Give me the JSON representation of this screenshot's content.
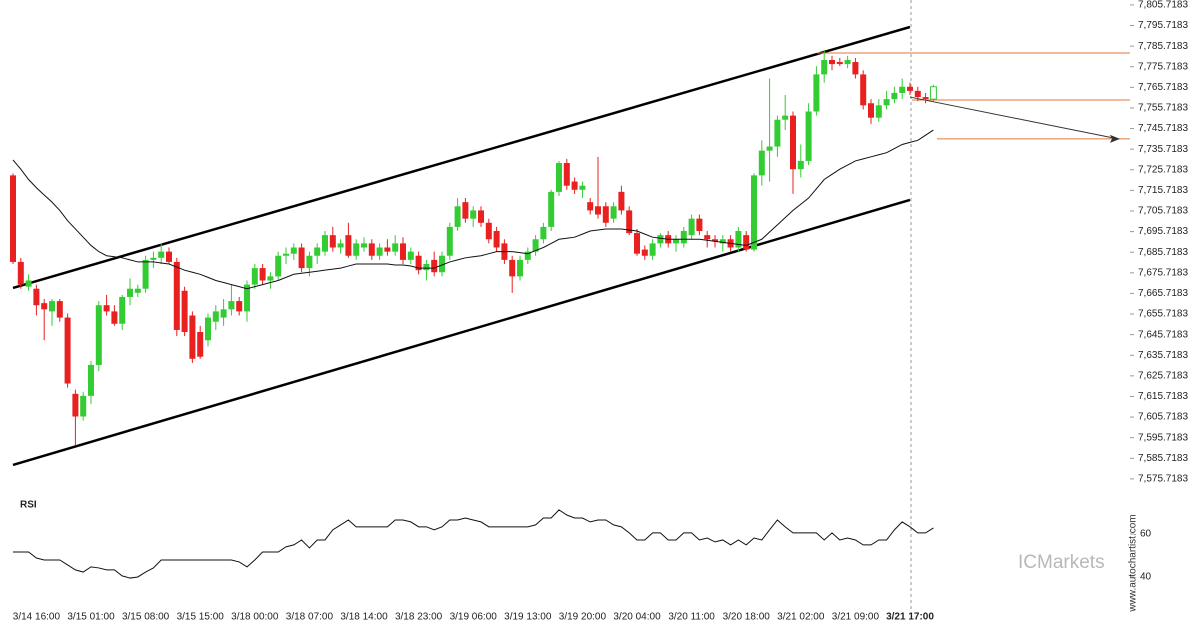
{
  "chart_data": [
    {
      "type": "candlestick",
      "last_hollow": true,
      "up_color": "#33cc33",
      "down_color": "#e82020",
      "ma_color": "#111111",
      "channel_color": "#000000",
      "level_color": "#e07a3a",
      "categories": [
        null,
        null,
        null,
        "3/14 16:00",
        null,
        null,
        null,
        null,
        null,
        null,
        "3/15 01:00",
        null,
        null,
        null,
        null,
        null,
        null,
        "3/15 08:00",
        null,
        null,
        null,
        null,
        null,
        null,
        "3/15 15:00",
        null,
        null,
        null,
        null,
        null,
        null,
        "3/18 00:00",
        null,
        null,
        null,
        null,
        null,
        null,
        "3/18 07:00",
        null,
        null,
        null,
        null,
        null,
        null,
        "3/18 14:00",
        null,
        null,
        null,
        null,
        null,
        null,
        "3/18 23:00",
        null,
        null,
        null,
        null,
        null,
        null,
        "3/19 06:00",
        null,
        null,
        null,
        null,
        null,
        null,
        "3/19 13:00",
        null,
        null,
        null,
        null,
        null,
        null,
        "3/19 20:00",
        null,
        null,
        null,
        null,
        null,
        null,
        "3/20 04:00",
        null,
        null,
        null,
        null,
        null,
        null,
        "3/20 11:00",
        null,
        null,
        null,
        null,
        null,
        null,
        "3/20 18:00",
        null,
        null,
        null,
        null,
        null,
        null,
        "3/21 02:00",
        null,
        null,
        null,
        null,
        null,
        null,
        "3/21 09:00",
        null,
        null,
        null,
        null,
        null,
        null,
        "3/21 17:00",
        null,
        null,
        null
      ],
      "ohlc": [
        [
          7723,
          7724,
          7680,
          7681
        ],
        [
          7681,
          7683,
          7668,
          7670
        ],
        [
          7669,
          7675,
          7667,
          7672
        ],
        [
          7668,
          7670,
          7655,
          7660
        ],
        [
          7661,
          7663,
          7643,
          7658
        ],
        [
          7657,
          7663,
          7650,
          7662
        ],
        [
          7662,
          7663,
          7652,
          7654
        ],
        [
          7654,
          7656,
          7620,
          7622
        ],
        [
          7617,
          7619,
          7592,
          7606
        ],
        [
          7606,
          7618,
          7604,
          7616
        ],
        [
          7616,
          7633,
          7612,
          7631
        ],
        [
          7631,
          7662,
          7628,
          7660
        ],
        [
          7660,
          7665,
          7655,
          7657
        ],
        [
          7657,
          7660,
          7650,
          7651
        ],
        [
          7651,
          7665,
          7648,
          7664
        ],
        [
          7664,
          7673,
          7660,
          7668
        ],
        [
          7666,
          7670,
          7664,
          7668
        ],
        [
          7668,
          7684,
          7666,
          7682
        ],
        [
          7682,
          7686,
          7678,
          7683
        ],
        [
          7683,
          7690,
          7680,
          7686
        ],
        [
          7686,
          7688,
          7680,
          7681
        ],
        [
          7681,
          7683,
          7645,
          7648
        ],
        [
          7667,
          7669,
          7645,
          7647
        ],
        [
          7655,
          7657,
          7632,
          7634
        ],
        [
          7647,
          7650,
          7634,
          7635
        ],
        [
          7643,
          7656,
          7640,
          7654
        ],
        [
          7652,
          7660,
          7648,
          7657
        ],
        [
          7654,
          7663,
          7650,
          7658
        ],
        [
          7658,
          7670,
          7655,
          7662
        ],
        [
          7662,
          7664,
          7655,
          7657
        ],
        [
          7657,
          7672,
          7652,
          7670
        ],
        [
          7670,
          7680,
          7668,
          7678
        ],
        [
          7678,
          7680,
          7670,
          7672
        ],
        [
          7672,
          7676,
          7668,
          7674
        ],
        [
          7674,
          7686,
          7672,
          7684
        ],
        [
          7684,
          7688,
          7680,
          7685
        ],
        [
          7685,
          7690,
          7682,
          7688
        ],
        [
          7688,
          7690,
          7676,
          7678
        ],
        [
          7678,
          7686,
          7674,
          7684
        ],
        [
          7684,
          7690,
          7680,
          7688
        ],
        [
          7686,
          7696,
          7684,
          7694
        ],
        [
          7694,
          7698,
          7686,
          7688
        ],
        [
          7688,
          7692,
          7685,
          7690
        ],
        [
          7694,
          7700,
          7683,
          7684
        ],
        [
          7684,
          7692,
          7682,
          7690
        ],
        [
          7688,
          7693,
          7686,
          7690
        ],
        [
          7690,
          7692,
          7682,
          7684
        ],
        [
          7684,
          7690,
          7682,
          7688
        ],
        [
          7688,
          7692,
          7684,
          7686
        ],
        [
          7686,
          7694,
          7684,
          7690
        ],
        [
          7690,
          7693,
          7680,
          7682
        ],
        [
          7682,
          7688,
          7680,
          7686
        ],
        [
          7684,
          7686,
          7675,
          7677
        ],
        [
          7677,
          7682,
          7672,
          7680
        ],
        [
          7682,
          7686,
          7674,
          7676
        ],
        [
          7676,
          7686,
          7674,
          7684
        ],
        [
          7684,
          7700,
          7682,
          7698
        ],
        [
          7698,
          7712,
          7696,
          7708
        ],
        [
          7710,
          7712,
          7700,
          7702
        ],
        [
          7702,
          7708,
          7698,
          7706
        ],
        [
          7706,
          7708,
          7698,
          7700
        ],
        [
          7700,
          7702,
          7690,
          7692
        ],
        [
          7696,
          7698,
          7686,
          7688
        ],
        [
          7690,
          7692,
          7680,
          7682
        ],
        [
          7682,
          7684,
          7666,
          7674
        ],
        [
          7674,
          7684,
          7672,
          7682
        ],
        [
          7682,
          7688,
          7680,
          7686
        ],
        [
          7686,
          7694,
          7684,
          7692
        ],
        [
          7692,
          7700,
          7690,
          7698
        ],
        [
          7698,
          7716,
          7696,
          7715
        ],
        [
          7715,
          7730,
          7713,
          7729
        ],
        [
          7729,
          7731,
          7716,
          7718
        ],
        [
          7720,
          7722,
          7714,
          7716
        ],
        [
          7716,
          7720,
          7712,
          7718
        ],
        [
          7710,
          7712,
          7704,
          7706
        ],
        [
          7708,
          7732,
          7702,
          7704
        ],
        [
          7708,
          7710,
          7698,
          7700
        ],
        [
          7702,
          7710,
          7700,
          7708
        ],
        [
          7715,
          7718,
          7704,
          7706
        ],
        [
          7706,
          7708,
          7694,
          7695
        ],
        [
          7695,
          7697,
          7684,
          7685
        ],
        [
          7687,
          7689,
          7682,
          7684
        ],
        [
          7684,
          7692,
          7682,
          7690
        ],
        [
          7690,
          7695,
          7688,
          7694
        ],
        [
          7694,
          7696,
          7688,
          7690
        ],
        [
          7690,
          7694,
          7686,
          7692
        ],
        [
          7690,
          7698,
          7688,
          7696
        ],
        [
          7694,
          7704,
          7692,
          7702
        ],
        [
          7702,
          7704,
          7694,
          7696
        ],
        [
          7694,
          7696,
          7688,
          7692
        ],
        [
          7692,
          7694,
          7688,
          7691
        ],
        [
          7690,
          7694,
          7686,
          7692
        ],
        [
          7692,
          7694,
          7686,
          7688
        ],
        [
          7688,
          7698,
          7686,
          7696
        ],
        [
          7694,
          7696,
          7686,
          7687
        ],
        [
          7687,
          7724,
          7686,
          7723
        ],
        [
          7723,
          7740,
          7718,
          7735
        ],
        [
          7735,
          7770,
          7720,
          7737
        ],
        [
          7737,
          7752,
          7732,
          7750
        ],
        [
          7750,
          7762,
          7745,
          7752
        ],
        [
          7752,
          7754,
          7714,
          7726
        ],
        [
          7726,
          7738,
          7722,
          7730
        ],
        [
          7730,
          7758,
          7728,
          7754
        ],
        [
          7754,
          7776,
          7752,
          7772
        ],
        [
          7772,
          7784,
          7768,
          7779
        ],
        [
          7779,
          7781,
          7774,
          7777
        ],
        [
          7778,
          7780,
          7776,
          7777
        ],
        [
          7777,
          7781,
          7775,
          7779
        ],
        [
          7778,
          7780,
          7770,
          7772
        ],
        [
          7772,
          7774,
          7755,
          7757
        ],
        [
          7758,
          7760,
          7748,
          7751
        ],
        [
          7751,
          7760,
          7749,
          7757
        ],
        [
          7757,
          7764,
          7755,
          7760
        ],
        [
          7760,
          7766,
          7758,
          7763
        ],
        [
          7763,
          7770,
          7760,
          7766
        ],
        [
          7766,
          7768,
          7762,
          7764
        ],
        [
          7764,
          7766,
          7759,
          7761
        ],
        [
          7761,
          7763,
          7758,
          7760
        ],
        [
          7760,
          7767,
          7759,
          7766
        ]
      ],
      "ma": [
        7730.5,
        7726,
        7721,
        7717,
        7713.5,
        7710,
        7706,
        7701,
        7697,
        7693,
        7689,
        7686,
        7684,
        7683.5,
        7683,
        7682,
        7681,
        7681,
        7681,
        7680.5,
        7680,
        7678.5,
        7677,
        7676,
        7675,
        7673.5,
        7672,
        7671,
        7670,
        7669,
        7668,
        7669,
        7670,
        7671,
        7672,
        7673.5,
        7675,
        7675.5,
        7676,
        7676.5,
        7677,
        7677.5,
        7678,
        7679,
        7680,
        7680,
        7680,
        7680,
        7680,
        7679.5,
        7679.5,
        7679,
        7678,
        7678,
        7678,
        7679.5,
        7681,
        7682,
        7683,
        7683.5,
        7684,
        7685,
        7686,
        7686,
        7686,
        7685.5,
        7685,
        7686.5,
        7688,
        7690,
        7692,
        7692.5,
        7693,
        7694.5,
        7696,
        7696.5,
        7697,
        7697,
        7697,
        7696.5,
        7696,
        7694.5,
        7693,
        7692.5,
        7692,
        7692,
        7692,
        7692,
        7692,
        7691.5,
        7691,
        7690.5,
        7690,
        7689.5,
        7689,
        7690.5,
        7692,
        7695.5,
        7699,
        7702.5,
        7706,
        7709,
        7712,
        7716.5,
        7721,
        7723.5,
        7726,
        7728,
        7730,
        7731,
        7732,
        7733,
        7734,
        7736,
        7738,
        7739,
        7740,
        7742.5,
        7745
      ],
      "channel_upper": [
        7668.4,
        7795.0
      ],
      "channel_lower": [
        7582.5,
        7711.1
      ],
      "levels": [
        7782.4,
        7759.6,
        7740.7
      ],
      "forecast": [
        7761,
        7740.7
      ],
      "ylim": [
        7570.33,
        7808.1
      ],
      "yticks": [
        {
          "value": 7575.7183,
          "label": "7,575.7183"
        },
        {
          "value": 7585.7183,
          "label": "7,585.7183"
        },
        {
          "value": 7595.7183,
          "label": "7,595.7183"
        },
        {
          "value": 7605.7183,
          "label": "7,605.7183"
        },
        {
          "value": 7615.7183,
          "label": "7,615.7183"
        },
        {
          "value": 7625.7183,
          "label": "7,625.7183"
        },
        {
          "value": 7635.7183,
          "label": "7,635.7183"
        },
        {
          "value": 7645.7183,
          "label": "7,645.7183"
        },
        {
          "value": 7655.7183,
          "label": "7,655.7183"
        },
        {
          "value": 7665.7183,
          "label": "7,665.7183"
        },
        {
          "value": 7675.7183,
          "label": "7,675.7183"
        },
        {
          "value": 7685.7183,
          "label": "7,685.7183"
        },
        {
          "value": 7695.7183,
          "label": "7,695.7183"
        },
        {
          "value": 7705.7183,
          "label": "7,705.7183"
        },
        {
          "value": 7715.7183,
          "label": "7,715.7183"
        },
        {
          "value": 7725.7183,
          "label": "7,725.7183"
        },
        {
          "value": 7735.7183,
          "label": "7,735.7183"
        },
        {
          "value": 7745.7183,
          "label": "7,745.7183"
        },
        {
          "value": 7755.7183,
          "label": "7,755.7183"
        },
        {
          "value": 7765.7183,
          "label": "7,765.7183"
        },
        {
          "value": 7775.7183,
          "label": "7,775.7183"
        },
        {
          "value": 7785.7183,
          "label": "7,785.7183"
        },
        {
          "value": 7795.7183,
          "label": "7,795.7183"
        },
        {
          "value": 7805.7183,
          "label": "7,805.7183"
        }
      ]
    },
    {
      "type": "line",
      "title": "RSI",
      "color": "#111111",
      "values": [
        51.6,
        51.6,
        51.6,
        48.8,
        47.9,
        47.9,
        47.9,
        45.6,
        43.3,
        42.3,
        44.7,
        44.2,
        43.3,
        43.3,
        40.5,
        39.5,
        40,
        42.3,
        44.2,
        47.9,
        47.9,
        47.9,
        47.9,
        47.9,
        47.9,
        47.9,
        47.9,
        47.9,
        47.9,
        47,
        44.7,
        47.9,
        51.6,
        51.6,
        51.6,
        54,
        54.9,
        57.2,
        53.5,
        57.2,
        57.2,
        61.9,
        64.2,
        66.5,
        63.3,
        63.3,
        63.3,
        63.3,
        63.3,
        66.5,
        66.5,
        65.6,
        63.3,
        63.3,
        61.9,
        63.3,
        66.5,
        66.5,
        67.4,
        66.5,
        65.6,
        63.3,
        63.3,
        63.3,
        63.3,
        63.3,
        63.3,
        64.2,
        67.4,
        67.4,
        71.2,
        68.8,
        67.4,
        67.4,
        65.6,
        66.5,
        66.5,
        64.2,
        63.3,
        60.5,
        57.2,
        57.2,
        60.5,
        60.5,
        57.2,
        57.2,
        60.5,
        60.5,
        57.2,
        58.1,
        56.3,
        57.2,
        54.9,
        57.2,
        54.9,
        58.1,
        57.2,
        61.9,
        66.5,
        63.3,
        60.5,
        60.5,
        60.5,
        60.5,
        57.2,
        60.5,
        57.2,
        58.1,
        57.2,
        54.9,
        54.9,
        57.2,
        57.2,
        61.9,
        65.6,
        63.3,
        60.5,
        60.5,
        62.8
      ],
      "ylim": [
        29.3,
        78.1
      ],
      "yticks": [
        40,
        60
      ]
    }
  ],
  "watermark": {
    "brand": "ICMarkets",
    "site": "www.autochartist.com"
  }
}
